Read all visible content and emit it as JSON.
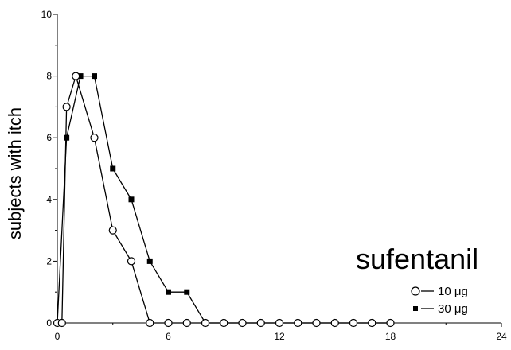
{
  "chart_data": {
    "type": "line",
    "title": "",
    "xlabel": "",
    "ylabel": "subjects with itch",
    "annotation": "sufentanil",
    "xlim": [
      0,
      24
    ],
    "ylim": [
      0,
      10
    ],
    "xticks": [
      0,
      6,
      12,
      18,
      24
    ],
    "yticks": [
      0,
      2,
      4,
      6,
      8,
      10
    ],
    "grid": false,
    "legend_position": "bottom-right",
    "series": [
      {
        "name": "10 μg",
        "marker": "open-circle",
        "color": "#000000",
        "x": [
          0,
          0.25,
          0.5,
          1,
          2,
          3,
          4,
          5,
          6,
          7,
          8,
          9,
          10,
          11,
          12,
          13,
          14,
          15,
          16,
          17,
          18
        ],
        "y": [
          0,
          0,
          7,
          8,
          6,
          3,
          2,
          0,
          0,
          0,
          0,
          0,
          0,
          0,
          0,
          0,
          0,
          0,
          0,
          0,
          0
        ]
      },
      {
        "name": "30 μg",
        "marker": "filled-square",
        "color": "#000000",
        "x": [
          0,
          0.5,
          1.25,
          2,
          3,
          4,
          5,
          6,
          7,
          8,
          9,
          10,
          11,
          12,
          13,
          14,
          15,
          16,
          17,
          18
        ],
        "y": [
          0,
          6,
          8,
          8,
          5,
          4,
          2,
          1,
          1,
          0,
          0,
          0,
          0,
          0,
          0,
          0,
          0,
          0,
          0,
          0
        ]
      }
    ]
  }
}
